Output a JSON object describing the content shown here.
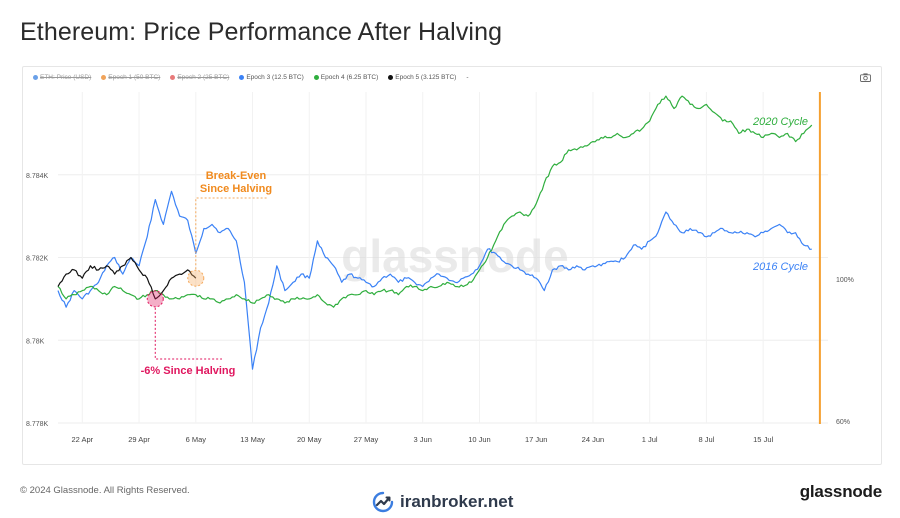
{
  "title": "Ethereum: Price Performance After Halving",
  "legend": [
    {
      "label": "ETH: Price (USD)",
      "color": "#6aa0e8",
      "active": false
    },
    {
      "label": "Epoch 1 (50 BTC)",
      "color": "#f0a35a",
      "active": false
    },
    {
      "label": "Epoch 2 (25 BTC)",
      "color": "#e87a7a",
      "active": false
    },
    {
      "label": "Epoch 3 (12.5 BTC)",
      "color": "#3b82f6",
      "active": true
    },
    {
      "label": "Epoch 4 (6.25 BTC)",
      "color": "#2fae3e",
      "active": true
    },
    {
      "label": "Epoch 5 (3.125 BTC)",
      "color": "#111111",
      "active": true
    },
    {
      "label": "-",
      "color": "#999999",
      "active": true
    }
  ],
  "watermark": "glassnode",
  "footer": {
    "copyright": "© 2024 Glassnode. All Rights Reserved.",
    "brand": "iranbroker.net",
    "logo": "glassnode"
  },
  "chart_data": {
    "type": "line",
    "title": "Ethereum: Price Performance After Halving",
    "x_ticks": [
      "22 Apr",
      "29 Apr",
      "6 May",
      "13 May",
      "20 May",
      "27 May",
      "3 Jun",
      "10 Jun",
      "17 Jun",
      "24 Jun",
      "1 Jul",
      "8 Jul",
      "15 Jul"
    ],
    "xlim": [
      "2024-04-19",
      "2024-07-23"
    ],
    "y_left_ticks": [
      "8.778K",
      "8.78K",
      "8.782K",
      "8.784K"
    ],
    "y_left_range": [
      8.778,
      8.786
    ],
    "y_right_ticks": [
      "60%",
      "100%"
    ],
    "series": [
      {
        "name": "Epoch 3 (12.5 BTC)",
        "color": "#3b82f6",
        "points": [
          [
            "2024-04-19",
            8.7812
          ],
          [
            "2024-04-20",
            8.7808
          ],
          [
            "2024-04-21",
            8.7812
          ],
          [
            "2024-04-22",
            8.781
          ],
          [
            "2024-04-23",
            8.7812
          ],
          [
            "2024-04-24",
            8.7814
          ],
          [
            "2024-04-25",
            8.7818
          ],
          [
            "2024-04-26",
            8.782
          ],
          [
            "2024-04-27",
            8.7816
          ],
          [
            "2024-04-28",
            8.782
          ],
          [
            "2024-04-29",
            8.7818
          ],
          [
            "2024-04-30",
            8.7825
          ],
          [
            "2024-05-01",
            8.7834
          ],
          [
            "2024-05-02",
            8.7828
          ],
          [
            "2024-05-03",
            8.7836
          ],
          [
            "2024-05-04",
            8.783
          ],
          [
            "2024-05-05",
            8.7829
          ],
          [
            "2024-05-06",
            8.7821
          ],
          [
            "2024-05-07",
            8.7827
          ],
          [
            "2024-05-08",
            8.7828
          ],
          [
            "2024-05-09",
            8.7826
          ],
          [
            "2024-05-10",
            8.7827
          ],
          [
            "2024-05-11",
            8.7824
          ],
          [
            "2024-05-12",
            8.7814
          ],
          [
            "2024-05-13",
            8.7793
          ],
          [
            "2024-05-14",
            8.7803
          ],
          [
            "2024-05-15",
            8.7809
          ],
          [
            "2024-05-16",
            8.7818
          ],
          [
            "2024-05-17",
            8.7812
          ],
          [
            "2024-05-18",
            8.7814
          ],
          [
            "2024-05-19",
            8.7816
          ],
          [
            "2024-05-20",
            8.7815
          ],
          [
            "2024-05-21",
            8.7824
          ],
          [
            "2024-05-22",
            8.782
          ],
          [
            "2024-05-23",
            8.7818
          ],
          [
            "2024-05-24",
            8.7814
          ],
          [
            "2024-05-25",
            8.7816
          ],
          [
            "2024-05-26",
            8.7815
          ],
          [
            "2024-05-27",
            8.7814
          ],
          [
            "2024-05-28",
            8.7813
          ],
          [
            "2024-05-29",
            8.7815
          ],
          [
            "2024-05-30",
            8.7816
          ],
          [
            "2024-05-31",
            8.7814
          ],
          [
            "2024-06-01",
            8.7815
          ],
          [
            "2024-06-02",
            8.7814
          ],
          [
            "2024-06-03",
            8.7813
          ],
          [
            "2024-06-04",
            8.7815
          ],
          [
            "2024-06-05",
            8.7816
          ],
          [
            "2024-06-06",
            8.7815
          ],
          [
            "2024-06-07",
            8.7814
          ],
          [
            "2024-06-08",
            8.7815
          ],
          [
            "2024-06-09",
            8.7816
          ],
          [
            "2024-06-10",
            8.7818
          ],
          [
            "2024-06-11",
            8.7822
          ],
          [
            "2024-06-12",
            8.7821
          ],
          [
            "2024-06-13",
            8.7819
          ],
          [
            "2024-06-14",
            8.7818
          ],
          [
            "2024-06-15",
            8.7817
          ],
          [
            "2024-06-16",
            8.7816
          ],
          [
            "2024-06-17",
            8.7815
          ],
          [
            "2024-06-18",
            8.7812
          ],
          [
            "2024-06-19",
            8.7817
          ],
          [
            "2024-06-20",
            8.7818
          ],
          [
            "2024-06-21",
            8.7817
          ],
          [
            "2024-06-22",
            8.7818
          ],
          [
            "2024-06-23",
            8.7817
          ],
          [
            "2024-06-24",
            8.7818
          ],
          [
            "2024-06-25",
            8.7818
          ],
          [
            "2024-06-26",
            8.7819
          ],
          [
            "2024-06-27",
            8.7819
          ],
          [
            "2024-06-28",
            8.782
          ],
          [
            "2024-06-29",
            8.7823
          ],
          [
            "2024-06-30",
            8.7822
          ],
          [
            "2024-07-01",
            8.7824
          ],
          [
            "2024-07-02",
            8.7826
          ],
          [
            "2024-07-03",
            8.7831
          ],
          [
            "2024-07-04",
            8.7828
          ],
          [
            "2024-07-05",
            8.7826
          ],
          [
            "2024-07-06",
            8.7827
          ],
          [
            "2024-07-07",
            8.7826
          ],
          [
            "2024-07-08",
            8.7825
          ],
          [
            "2024-07-09",
            8.7826
          ],
          [
            "2024-07-10",
            8.7827
          ],
          [
            "2024-07-11",
            8.7826
          ],
          [
            "2024-07-12",
            8.7826
          ],
          [
            "2024-07-13",
            8.7826
          ],
          [
            "2024-07-14",
            8.7825
          ],
          [
            "2024-07-15",
            8.7826
          ],
          [
            "2024-07-16",
            8.7827
          ],
          [
            "2024-07-17",
            8.7828
          ],
          [
            "2024-07-18",
            8.7826
          ],
          [
            "2024-07-19",
            8.7826
          ],
          [
            "2024-07-20",
            8.7823
          ],
          [
            "2024-07-21",
            8.7822
          ]
        ]
      },
      {
        "name": "Epoch 4 (6.25 BTC)",
        "color": "#2fae3e",
        "points": [
          [
            "2024-04-19",
            8.7813
          ],
          [
            "2024-04-20",
            8.781
          ],
          [
            "2024-04-21",
            8.7811
          ],
          [
            "2024-04-22",
            8.7812
          ],
          [
            "2024-04-23",
            8.7813
          ],
          [
            "2024-04-24",
            8.7812
          ],
          [
            "2024-04-25",
            8.7811
          ],
          [
            "2024-04-26",
            8.7813
          ],
          [
            "2024-04-27",
            8.7812
          ],
          [
            "2024-04-28",
            8.7811
          ],
          [
            "2024-04-29",
            8.781
          ],
          [
            "2024-04-30",
            8.7811
          ],
          [
            "2024-05-01",
            8.7812
          ],
          [
            "2024-05-02",
            8.7811
          ],
          [
            "2024-05-03",
            8.781
          ],
          [
            "2024-05-04",
            8.781
          ],
          [
            "2024-05-05",
            8.7811
          ],
          [
            "2024-05-06",
            8.7811
          ],
          [
            "2024-05-07",
            8.781
          ],
          [
            "2024-05-08",
            8.781
          ],
          [
            "2024-05-09",
            8.7809
          ],
          [
            "2024-05-10",
            8.781
          ],
          [
            "2024-05-11",
            8.7811
          ],
          [
            "2024-05-12",
            8.781
          ],
          [
            "2024-05-13",
            8.7809
          ],
          [
            "2024-05-14",
            8.781
          ],
          [
            "2024-05-15",
            8.7811
          ],
          [
            "2024-05-16",
            8.781
          ],
          [
            "2024-05-17",
            8.7809
          ],
          [
            "2024-05-18",
            8.781
          ],
          [
            "2024-05-19",
            8.781
          ],
          [
            "2024-05-20",
            8.781
          ],
          [
            "2024-05-21",
            8.7811
          ],
          [
            "2024-05-22",
            8.7809
          ],
          [
            "2024-05-23",
            8.7808
          ],
          [
            "2024-05-24",
            8.781
          ],
          [
            "2024-05-25",
            8.7811
          ],
          [
            "2024-05-26",
            8.7811
          ],
          [
            "2024-05-27",
            8.7812
          ],
          [
            "2024-05-28",
            8.7811
          ],
          [
            "2024-05-29",
            8.7812
          ],
          [
            "2024-05-30",
            8.7812
          ],
          [
            "2024-05-31",
            8.7811
          ],
          [
            "2024-06-01",
            8.7813
          ],
          [
            "2024-06-02",
            8.7813
          ],
          [
            "2024-06-03",
            8.7812
          ],
          [
            "2024-06-04",
            8.7813
          ],
          [
            "2024-06-05",
            8.7813
          ],
          [
            "2024-06-06",
            8.7814
          ],
          [
            "2024-06-07",
            8.7813
          ],
          [
            "2024-06-08",
            8.7813
          ],
          [
            "2024-06-09",
            8.7814
          ],
          [
            "2024-06-10",
            8.7817
          ],
          [
            "2024-06-11",
            8.782
          ],
          [
            "2024-06-12",
            8.7824
          ],
          [
            "2024-06-13",
            8.7828
          ],
          [
            "2024-06-14",
            8.783
          ],
          [
            "2024-06-15",
            8.7831
          ],
          [
            "2024-06-16",
            8.783
          ],
          [
            "2024-06-17",
            8.7833
          ],
          [
            "2024-06-18",
            8.7838
          ],
          [
            "2024-06-19",
            8.7842
          ],
          [
            "2024-06-20",
            8.7843
          ],
          [
            "2024-06-21",
            8.7846
          ],
          [
            "2024-06-22",
            8.7846
          ],
          [
            "2024-06-23",
            8.7847
          ],
          [
            "2024-06-24",
            8.7848
          ],
          [
            "2024-06-25",
            8.7849
          ],
          [
            "2024-06-26",
            8.7849
          ],
          [
            "2024-06-27",
            8.785
          ],
          [
            "2024-06-28",
            8.7849
          ],
          [
            "2024-06-29",
            8.785
          ],
          [
            "2024-06-30",
            8.7851
          ],
          [
            "2024-07-01",
            8.7853
          ],
          [
            "2024-07-02",
            8.7857
          ],
          [
            "2024-07-03",
            8.7859
          ],
          [
            "2024-07-04",
            8.7856
          ],
          [
            "2024-07-05",
            8.7859
          ],
          [
            "2024-07-06",
            8.7857
          ],
          [
            "2024-07-07",
            8.7856
          ],
          [
            "2024-07-08",
            8.7857
          ],
          [
            "2024-07-09",
            8.7855
          ],
          [
            "2024-07-10",
            8.7853
          ],
          [
            "2024-07-11",
            8.7853
          ],
          [
            "2024-07-12",
            8.785
          ],
          [
            "2024-07-13",
            8.7851
          ],
          [
            "2024-07-14",
            8.785
          ],
          [
            "2024-07-15",
            8.7849
          ],
          [
            "2024-07-16",
            8.785
          ],
          [
            "2024-07-17",
            8.7849
          ],
          [
            "2024-07-18",
            8.785
          ],
          [
            "2024-07-19",
            8.7848
          ],
          [
            "2024-07-20",
            8.785
          ],
          [
            "2024-07-21",
            8.7852
          ]
        ]
      },
      {
        "name": "Epoch 5 (3.125 BTC)",
        "color": "#111111",
        "points": [
          [
            "2024-04-19",
            8.7813
          ],
          [
            "2024-04-20",
            8.7816
          ],
          [
            "2024-04-21",
            8.7817
          ],
          [
            "2024-04-22",
            8.7815
          ],
          [
            "2024-04-23",
            8.7818
          ],
          [
            "2024-04-24",
            8.7817
          ],
          [
            "2024-04-25",
            8.7818
          ],
          [
            "2024-04-26",
            8.7816
          ],
          [
            "2024-04-27",
            8.7818
          ],
          [
            "2024-04-28",
            8.782
          ],
          [
            "2024-04-29",
            8.7817
          ],
          [
            "2024-04-30",
            8.7815
          ],
          [
            "2024-05-01",
            8.781
          ],
          [
            "2024-05-02",
            8.7812
          ],
          [
            "2024-05-03",
            8.7815
          ],
          [
            "2024-05-04",
            8.7816
          ],
          [
            "2024-05-05",
            8.7817
          ],
          [
            "2024-05-06",
            8.7815
          ]
        ]
      }
    ],
    "annotations": [
      {
        "text": "2020 Cycle",
        "color": "#2fae3e"
      },
      {
        "text": "2016 Cycle",
        "color": "#3b82f6"
      },
      {
        "text": "Break-Even",
        "color": "#f08a1e"
      },
      {
        "text": "Since Halving",
        "color": "#f08a1e"
      },
      {
        "text": "-6% Since Halving",
        "color": "#e0175f"
      }
    ],
    "markers": [
      {
        "date": "2024-05-06",
        "value": 8.7815,
        "color": "#f5a95c"
      },
      {
        "date": "2024-05-01",
        "value": 8.781,
        "color": "#e0175f"
      }
    ],
    "reference_date": "2024-07-22",
    "grid": true
  }
}
